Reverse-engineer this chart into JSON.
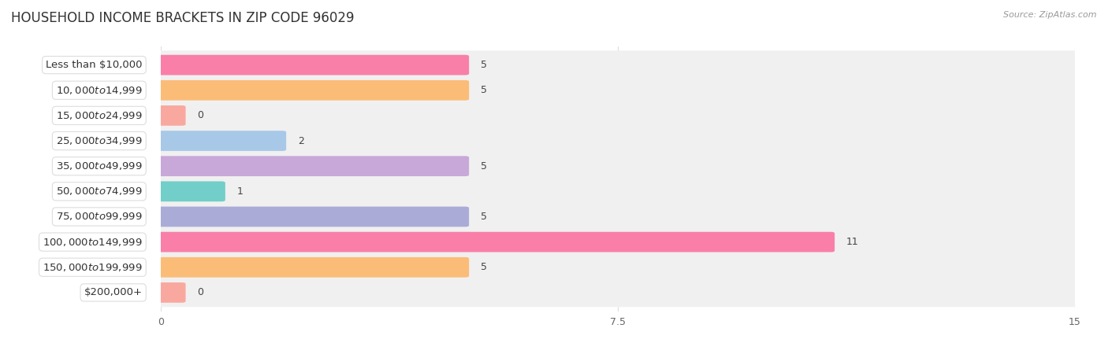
{
  "title": "HOUSEHOLD INCOME BRACKETS IN ZIP CODE 96029",
  "source": "Source: ZipAtlas.com",
  "categories": [
    "Less than $10,000",
    "$10,000 to $14,999",
    "$15,000 to $24,999",
    "$25,000 to $34,999",
    "$35,000 to $49,999",
    "$50,000 to $74,999",
    "$75,000 to $99,999",
    "$100,000 to $149,999",
    "$150,000 to $199,999",
    "$200,000+"
  ],
  "values": [
    5,
    5,
    0,
    2,
    5,
    1,
    5,
    11,
    5,
    0
  ],
  "bar_colors": [
    "#F97FA8",
    "#FBBC78",
    "#F9A8A0",
    "#A8C8E8",
    "#C8A8D8",
    "#72CEC8",
    "#ABABD8",
    "#F97FA8",
    "#FBBC78",
    "#F9A8A0"
  ],
  "xlim": [
    0,
    15
  ],
  "xticks": [
    0,
    7.5,
    15
  ],
  "background_color": "#ffffff",
  "row_bg_color": "#f0f0f0",
  "label_bg_color": "#ffffff",
  "title_fontsize": 12,
  "label_fontsize": 9.5,
  "value_fontsize": 9
}
